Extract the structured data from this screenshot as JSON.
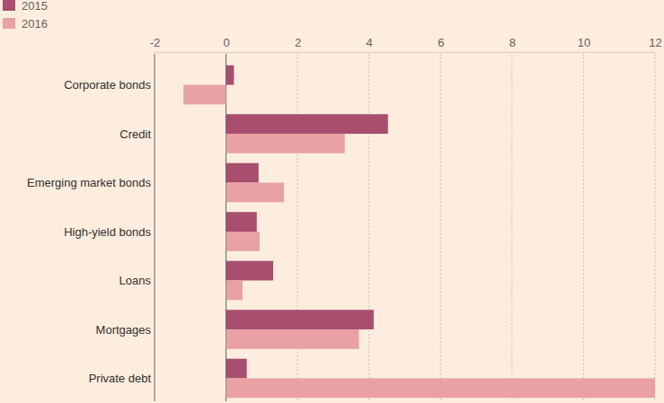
{
  "chart_data": {
    "type": "bar",
    "orientation": "horizontal",
    "grid": true,
    "legend": "top-left",
    "categories": [
      "Corporate bonds",
      "Credit",
      "Emerging market bonds",
      "High-yield bonds",
      "Loans",
      "Mortgages",
      "Private debt"
    ],
    "series": [
      {
        "name": "2015",
        "color": "#a84f6f",
        "values": [
          0.22,
          4.53,
          0.91,
          0.86,
          1.32,
          4.13,
          0.58
        ]
      },
      {
        "name": "2016",
        "color": "#e9a1a6",
        "values": [
          -1.19,
          3.32,
          1.62,
          0.94,
          0.46,
          3.72,
          12.0
        ]
      }
    ],
    "xlim": [
      -2,
      12
    ],
    "xticks": [
      -2,
      0,
      2,
      4,
      6,
      8,
      10,
      12
    ]
  }
}
